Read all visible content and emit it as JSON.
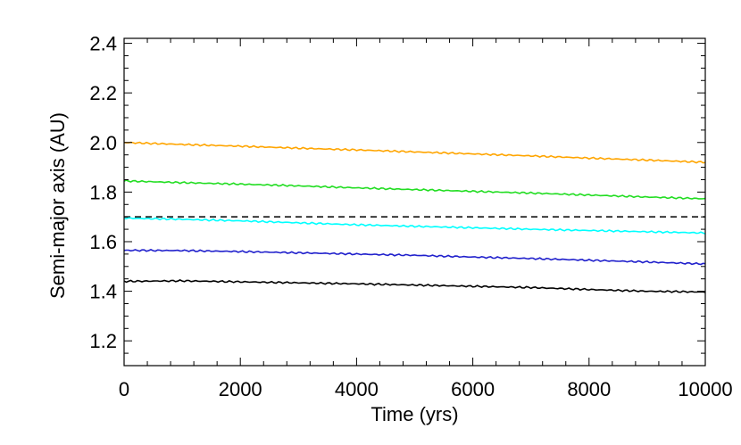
{
  "chart_data": {
    "type": "line",
    "title": "",
    "xlabel": "Time (yrs)",
    "ylabel": "Semi-major axis (AU)",
    "xlim": [
      0,
      10000
    ],
    "ylim": [
      1.1,
      2.42
    ],
    "xticks": [
      0,
      2000,
      4000,
      6000,
      8000,
      10000
    ],
    "xtick_labels": [
      "0",
      "2000",
      "4000",
      "6000",
      "8000",
      "10000"
    ],
    "yticks": [
      1.2,
      1.4,
      1.6,
      1.8,
      2.0,
      2.2,
      2.4
    ],
    "ytick_labels": [
      "1.2",
      "1.4",
      "1.6",
      "1.8",
      "2.0",
      "2.2",
      "2.4"
    ],
    "grid": false,
    "legend": "none",
    "reference_line": {
      "y": 1.7,
      "style": "dashed",
      "color": "#000000"
    },
    "series": [
      {
        "color": "#FFA500",
        "x": [
          0,
          1000,
          2000,
          3000,
          4000,
          5000,
          6000,
          7000,
          8000,
          9000,
          10000
        ],
        "values": [
          2.0,
          1.992,
          1.985,
          1.977,
          1.97,
          1.962,
          1.954,
          1.946,
          1.937,
          1.929,
          1.92
        ]
      },
      {
        "color": "#22DD22",
        "x": [
          0,
          1000,
          2000,
          3000,
          4000,
          5000,
          6000,
          7000,
          8000,
          9000,
          10000
        ],
        "values": [
          1.845,
          1.838,
          1.832,
          1.825,
          1.817,
          1.81,
          1.803,
          1.796,
          1.788,
          1.78,
          1.773
        ]
      },
      {
        "color": "#00FFFF",
        "x": [
          0,
          1000,
          2000,
          3000,
          4000,
          5000,
          6000,
          7000,
          8000,
          9000,
          10000
        ],
        "values": [
          1.695,
          1.69,
          1.684,
          1.676,
          1.668,
          1.662,
          1.656,
          1.65,
          1.645,
          1.64,
          1.635
        ]
      },
      {
        "color": "#2020CC",
        "x": [
          0,
          1000,
          2000,
          3000,
          4000,
          5000,
          6000,
          7000,
          8000,
          9000,
          10000
        ],
        "values": [
          1.565,
          1.564,
          1.56,
          1.555,
          1.55,
          1.545,
          1.538,
          1.532,
          1.525,
          1.518,
          1.51
        ]
      },
      {
        "color": "#000000",
        "x": [
          0,
          1000,
          2000,
          3000,
          4000,
          5000,
          6000,
          7000,
          8000,
          9000,
          10000
        ],
        "values": [
          1.44,
          1.442,
          1.438,
          1.434,
          1.43,
          1.425,
          1.42,
          1.415,
          1.407,
          1.4,
          1.397
        ]
      }
    ]
  }
}
